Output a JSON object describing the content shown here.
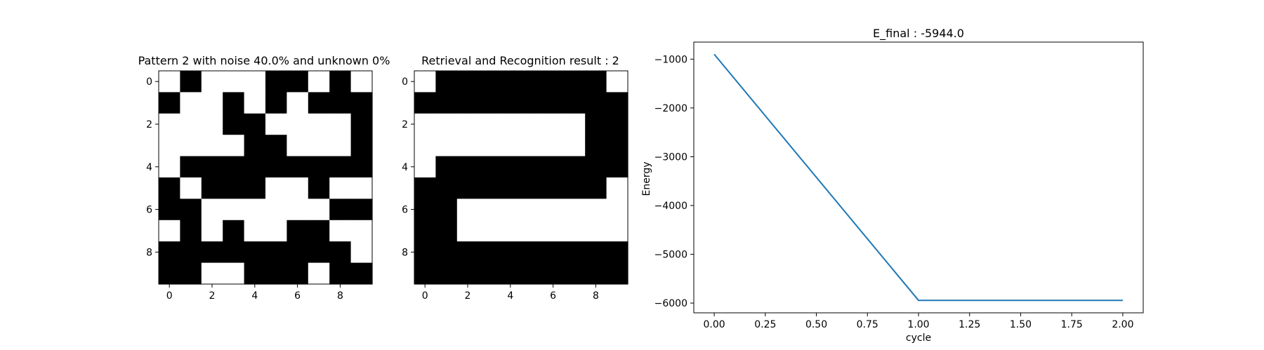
{
  "colors": {
    "on": "#000000",
    "off": "#ffffff",
    "line": "#1f77b4"
  },
  "chart_data": [
    {
      "type": "heatmap",
      "title": "Pattern 2 with noise 40.0% and unknown 0%",
      "x_ticks": [
        0,
        2,
        4,
        6,
        8
      ],
      "y_ticks": [
        0,
        2,
        4,
        6,
        8
      ],
      "grid": [
        [
          0,
          1,
          0,
          0,
          0,
          1,
          1,
          0,
          1,
          0
        ],
        [
          1,
          0,
          0,
          1,
          0,
          1,
          0,
          1,
          1,
          1
        ],
        [
          0,
          0,
          0,
          1,
          1,
          0,
          0,
          0,
          0,
          1
        ],
        [
          0,
          0,
          0,
          0,
          1,
          1,
          0,
          0,
          0,
          1
        ],
        [
          0,
          1,
          1,
          1,
          1,
          1,
          1,
          1,
          1,
          1
        ],
        [
          1,
          0,
          1,
          1,
          1,
          0,
          0,
          1,
          0,
          0
        ],
        [
          1,
          1,
          0,
          0,
          0,
          0,
          0,
          0,
          1,
          1
        ],
        [
          0,
          1,
          0,
          1,
          0,
          0,
          1,
          1,
          0,
          0
        ],
        [
          1,
          1,
          1,
          1,
          1,
          1,
          1,
          1,
          1,
          0
        ],
        [
          1,
          1,
          0,
          0,
          1,
          1,
          1,
          0,
          1,
          1
        ]
      ]
    },
    {
      "type": "heatmap",
      "title": "Retrieval and Recognition result : 2",
      "x_ticks": [
        0,
        2,
        4,
        6,
        8
      ],
      "y_ticks": [
        0,
        2,
        4,
        6,
        8
      ],
      "grid": [
        [
          0,
          1,
          1,
          1,
          1,
          1,
          1,
          1,
          1,
          0
        ],
        [
          1,
          1,
          1,
          1,
          1,
          1,
          1,
          1,
          1,
          1
        ],
        [
          0,
          0,
          0,
          0,
          0,
          0,
          0,
          0,
          1,
          1
        ],
        [
          0,
          0,
          0,
          0,
          0,
          0,
          0,
          0,
          1,
          1
        ],
        [
          0,
          1,
          1,
          1,
          1,
          1,
          1,
          1,
          1,
          1
        ],
        [
          1,
          1,
          1,
          1,
          1,
          1,
          1,
          1,
          1,
          0
        ],
        [
          1,
          1,
          0,
          0,
          0,
          0,
          0,
          0,
          0,
          0
        ],
        [
          1,
          1,
          0,
          0,
          0,
          0,
          0,
          0,
          0,
          0
        ],
        [
          1,
          1,
          1,
          1,
          1,
          1,
          1,
          1,
          1,
          1
        ],
        [
          1,
          1,
          1,
          1,
          1,
          1,
          1,
          1,
          1,
          1
        ]
      ]
    },
    {
      "type": "line",
      "title": "E_final : -5944.0",
      "xlabel": "cycle",
      "ylabel": "Energy",
      "x": [
        0,
        1,
        2
      ],
      "y": [
        -900,
        -5944,
        -5944
      ],
      "xlim": [
        -0.1,
        2.1
      ],
      "ylim": [
        -6200,
        -650
      ],
      "x_ticks": [
        0,
        0.25,
        0.5,
        0.75,
        1,
        1.25,
        1.5,
        1.75,
        2
      ],
      "x_tick_labels": [
        "0.00",
        "0.25",
        "0.50",
        "0.75",
        "1.00",
        "1.25",
        "1.50",
        "1.75",
        "2.00"
      ],
      "y_ticks": [
        -1000,
        -2000,
        -3000,
        -4000,
        -5000,
        -6000
      ],
      "y_tick_labels": [
        "−1000",
        "−2000",
        "−3000",
        "−4000",
        "−5000",
        "−6000"
      ]
    }
  ]
}
